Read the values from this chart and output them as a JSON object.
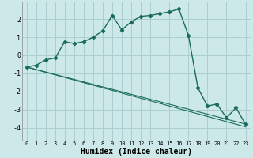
{
  "xlabel": "Humidex (Indice chaleur)",
  "ylabel": "",
  "bg_color": "#cce8e8",
  "grid_color": "#aacece",
  "line_color": "#1a6b5a",
  "xlim": [
    -0.5,
    23.5
  ],
  "ylim": [
    -4.7,
    2.9
  ],
  "yticks": [
    -4,
    -3,
    -2,
    -1,
    0,
    1,
    2
  ],
  "xticks": [
    0,
    1,
    2,
    3,
    4,
    5,
    6,
    7,
    8,
    9,
    10,
    11,
    12,
    13,
    14,
    15,
    16,
    17,
    18,
    19,
    20,
    21,
    22,
    23
  ],
  "series1_x": [
    0,
    1,
    2,
    3,
    4,
    5,
    6,
    7,
    8,
    9,
    10,
    11,
    12,
    13,
    14,
    15,
    16,
    17,
    18,
    19,
    20,
    21,
    22,
    23
  ],
  "series1_y": [
    -0.65,
    -0.55,
    -0.25,
    -0.15,
    0.75,
    0.65,
    0.75,
    1.0,
    1.35,
    2.2,
    1.4,
    1.85,
    2.15,
    2.2,
    2.3,
    2.4,
    2.55,
    1.1,
    -1.8,
    -2.8,
    -2.7,
    -3.45,
    -2.9,
    -3.8
  ],
  "series2_x": [
    0,
    23
  ],
  "series2_y": [
    -0.65,
    -3.8
  ],
  "series3_x": [
    0,
    23
  ],
  "series3_y": [
    -0.65,
    -3.95
  ]
}
